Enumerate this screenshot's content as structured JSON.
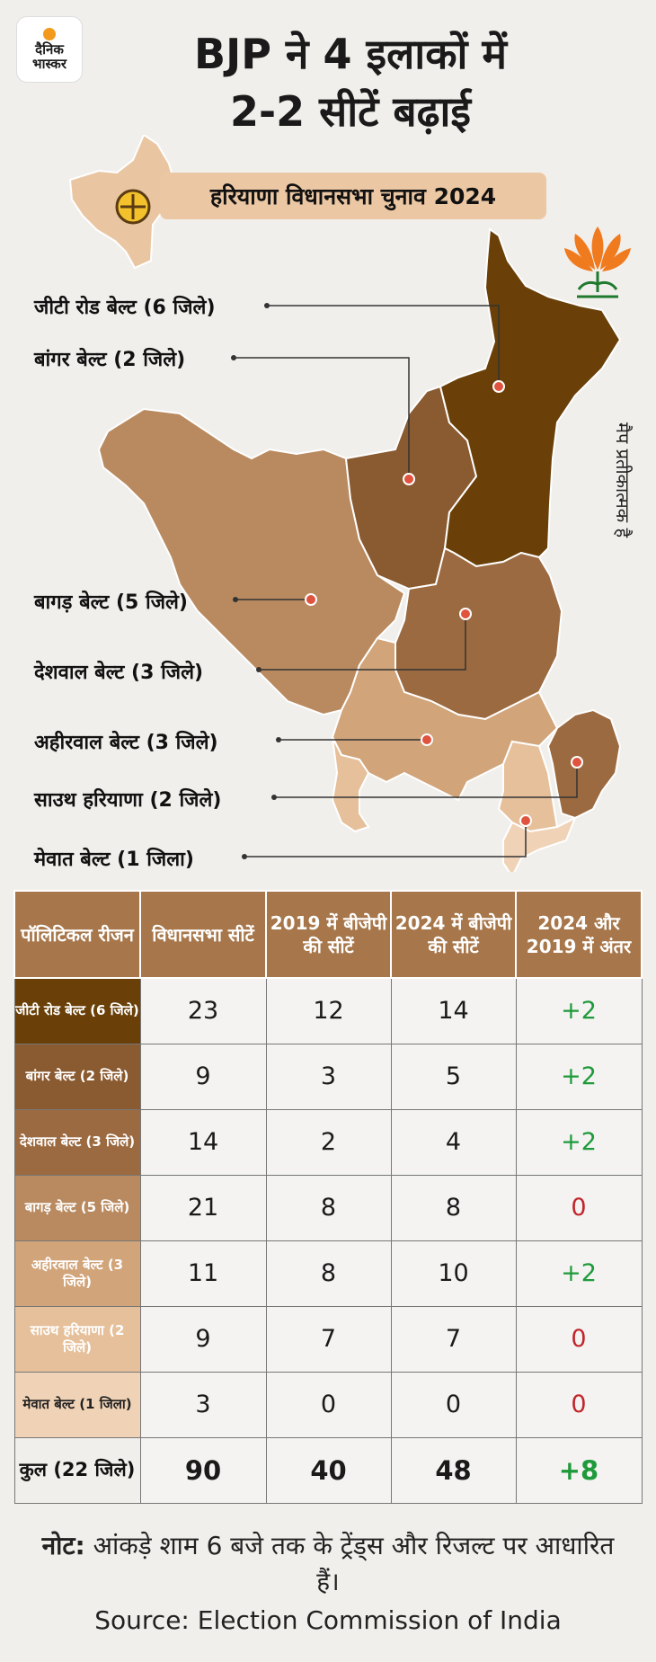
{
  "logo": {
    "line1": "दैनिक",
    "line2": "भास्कर"
  },
  "headline": {
    "line1": "BJP ने 4 इलाकों में",
    "line2": "2-2 सीटें बढ़ाई"
  },
  "subtitle": "हरियाणा विधानसभा चुनाव 2024",
  "side_note": "मैप प्रतीकात्मक है",
  "map_labels": [
    "जीटी रोड बेल्ट (6 जिले)",
    "बांगर बेल्ट (2 जिले)",
    "बागड़ बेल्ट (5 जिले)",
    "देशवाल बेल्ट (3 जिले)",
    "अहीरवाल बेल्ट (3 जिले)",
    "साउथ हरियाणा (2 जिले)",
    "मेवात बेल्ट (1 जिला)"
  ],
  "colors": {
    "gt_road": "#6a4008",
    "bangar": "#8a5a30",
    "deshwal": "#9c6a40",
    "bagar": "#b98a5f",
    "ahirwal": "#d1a47a",
    "south": "#e6c09a",
    "mewat": "#f0d3b6",
    "header": "#a7774b",
    "positive": "#1e9a3a",
    "zero": "#c0262c"
  },
  "table": {
    "headers": [
      "पॉलिटिकल रीजन",
      "विधानसभा सीटें",
      "2019 में बीजेपी की सीटें",
      "2024 में बीजेपी की सीटें",
      "2024 और 2019 में अंतर"
    ],
    "rows": [
      {
        "region": "जीटी रोड बेल्ट (6 जिले)",
        "seats": "23",
        "y2019": "12",
        "y2024": "14",
        "diff": "+2"
      },
      {
        "region": "बांगर बेल्ट (2 जिले)",
        "seats": "9",
        "y2019": "3",
        "y2024": "5",
        "diff": "+2"
      },
      {
        "region": "देशवाल बेल्ट (3 जिले)",
        "seats": "14",
        "y2019": "2",
        "y2024": "4",
        "diff": "+2"
      },
      {
        "region": "बागड़ बेल्ट (5 जिले)",
        "seats": "21",
        "y2019": "8",
        "y2024": "8",
        "diff": "0"
      },
      {
        "region": "अहीरवाल बेल्ट (3 जिले)",
        "seats": "11",
        "y2019": "8",
        "y2024": "10",
        "diff": "+2"
      },
      {
        "region": "साउथ हरियाणा (2 जिले)",
        "seats": "9",
        "y2019": "7",
        "y2024": "7",
        "diff": "0"
      },
      {
        "region": "मेवात बेल्ट (1 जिला)",
        "seats": "3",
        "y2019": "0",
        "y2024": "0",
        "diff": "0"
      }
    ],
    "total": {
      "region": "कुल (22 जिले)",
      "seats": "90",
      "y2019": "40",
      "y2024": "48",
      "diff": "+8"
    }
  },
  "note_prefix": "नोट:",
  "note_text": "आंकड़े शाम 6 बजे तक के ट्रेंड्स और रिजल्ट पर आधारित हैं।",
  "source": "Source: Election Commission of India"
}
